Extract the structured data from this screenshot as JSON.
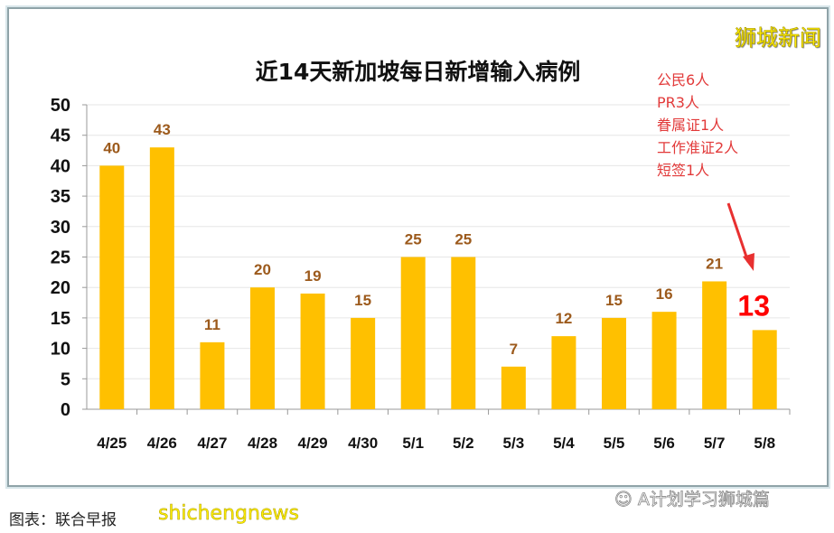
{
  "chart_data": {
    "type": "bar",
    "title": "近14天新加坡每日新增输入病例",
    "categories": [
      "4/25",
      "4/26",
      "4/27",
      "4/28",
      "4/29",
      "4/30",
      "5/1",
      "5/2",
      "5/3",
      "5/4",
      "5/5",
      "5/6",
      "5/7",
      "5/8"
    ],
    "values": [
      40,
      43,
      11,
      20,
      19,
      15,
      25,
      25,
      7,
      12,
      15,
      16,
      21,
      13
    ],
    "ylim": [
      0,
      50
    ],
    "yticks": [
      0,
      5,
      10,
      15,
      20,
      25,
      30,
      35,
      40,
      45,
      50
    ],
    "grid": true,
    "bar_color": "#ffc000",
    "label_color": "#9c5a1c",
    "highlight_label_color": "#ff0000",
    "annotation": [
      "公民6人",
      "PR3人",
      "眷属证1人",
      "工作准证2人",
      "短签1人"
    ]
  },
  "brand": "狮城新闻",
  "credit": "图表：联合早报",
  "watermark": "shichengnews",
  "wechat": "A计划学习狮城篇"
}
